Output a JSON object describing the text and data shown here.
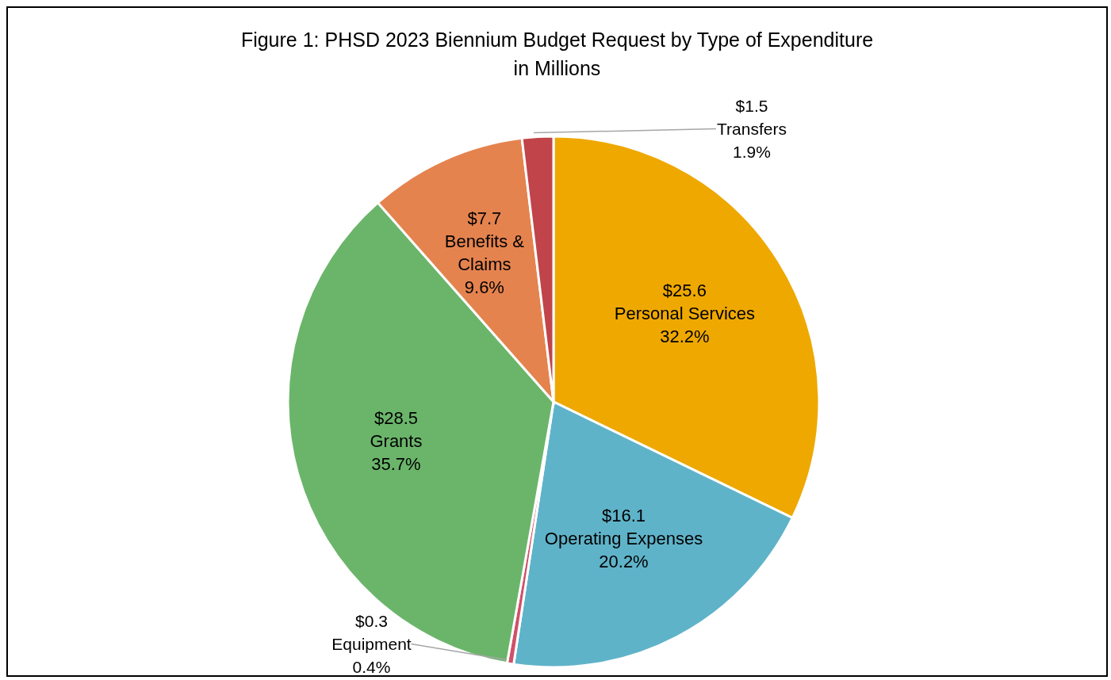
{
  "chart_data": {
    "type": "pie",
    "title": "Figure 1: PHSD 2023 Biennium Budget Request by Type of Expenditure\nin Millions",
    "categories": [
      "Personal Services",
      "Operating Expenses",
      "Equipment",
      "Grants",
      "Benefits & Claims",
      "Transfers"
    ],
    "values": [
      32.2,
      20.2,
      0.4,
      35.7,
      9.6,
      1.9
    ],
    "colors": [
      "#eea800",
      "#5fb3c9",
      "#d0506a",
      "#6bb56b",
      "#e5834f",
      "#c0444a"
    ],
    "value_labels": [
      "$25.6\n32.2%",
      "$16.1\n20.2%",
      "$0.3\n0.4%",
      "$28.5\n35.7%",
      "$7.7\n9.6%",
      "$1.5\n1.9%"
    ]
  }
}
